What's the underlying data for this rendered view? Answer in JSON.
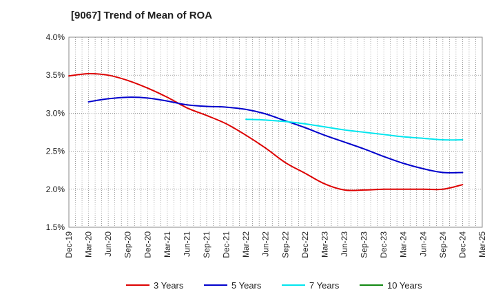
{
  "chart_data": {
    "type": "line",
    "title": "[9067]  Trend of Mean of ROA",
    "xlabel": "",
    "ylabel": "",
    "x_ticks": [
      "Dec-19",
      "Mar-20",
      "Jun-20",
      "Sep-20",
      "Dec-20",
      "Mar-21",
      "Jun-21",
      "Sep-21",
      "Dec-21",
      "Mar-22",
      "Jun-22",
      "Sep-22",
      "Dec-22",
      "Mar-23",
      "Jun-23",
      "Sep-23",
      "Dec-23",
      "Mar-24",
      "Jun-24",
      "Sep-24",
      "Dec-24",
      "Mar-25"
    ],
    "y_ticks": [
      "1.5%",
      "2.0%",
      "2.5%",
      "3.0%",
      "3.5%",
      "4.0%"
    ],
    "ylim": [
      1.5,
      4.0
    ],
    "grid": "dotted",
    "legend_position": "bottom",
    "series": [
      {
        "name": "3 Years",
        "color": "#dd0000",
        "x": [
          "Dec-19",
          "Mar-20",
          "Jun-20",
          "Sep-20",
          "Dec-20",
          "Mar-21",
          "Jun-21",
          "Sep-21",
          "Dec-21",
          "Mar-22",
          "Jun-22",
          "Sep-22",
          "Dec-22",
          "Mar-23",
          "Jun-23",
          "Sep-23",
          "Dec-23",
          "Mar-24",
          "Jun-24",
          "Sep-24",
          "Dec-24"
        ],
        "values": [
          3.49,
          3.52,
          3.5,
          3.43,
          3.33,
          3.21,
          3.07,
          2.97,
          2.86,
          2.71,
          2.54,
          2.35,
          2.21,
          2.07,
          1.99,
          1.99,
          2.0,
          2.0,
          2.0,
          2.0,
          2.06
        ]
      },
      {
        "name": "5 Years",
        "color": "#0000cc",
        "x": [
          "Mar-20",
          "Jun-20",
          "Sep-20",
          "Dec-20",
          "Mar-21",
          "Jun-21",
          "Sep-21",
          "Dec-21",
          "Mar-22",
          "Jun-22",
          "Sep-22",
          "Dec-22",
          "Mar-23",
          "Jun-23",
          "Sep-23",
          "Dec-23",
          "Mar-24",
          "Jun-24",
          "Sep-24",
          "Dec-24"
        ],
        "values": [
          3.15,
          3.19,
          3.21,
          3.2,
          3.16,
          3.11,
          3.09,
          3.08,
          3.05,
          2.99,
          2.9,
          2.81,
          2.71,
          2.62,
          2.53,
          2.43,
          2.34,
          2.27,
          2.22,
          2.22
        ]
      },
      {
        "name": "7 Years",
        "color": "#00e5ee",
        "x": [
          "Mar-22",
          "Jun-22",
          "Sep-22",
          "Dec-22",
          "Mar-23",
          "Jun-23",
          "Sep-23",
          "Dec-23",
          "Mar-24",
          "Jun-24",
          "Sep-24",
          "Dec-24"
        ],
        "values": [
          2.92,
          2.91,
          2.89,
          2.86,
          2.82,
          2.78,
          2.75,
          2.72,
          2.69,
          2.67,
          2.65,
          2.65
        ]
      },
      {
        "name": "10 Years",
        "color": "#118811",
        "x": [],
        "values": []
      }
    ]
  }
}
